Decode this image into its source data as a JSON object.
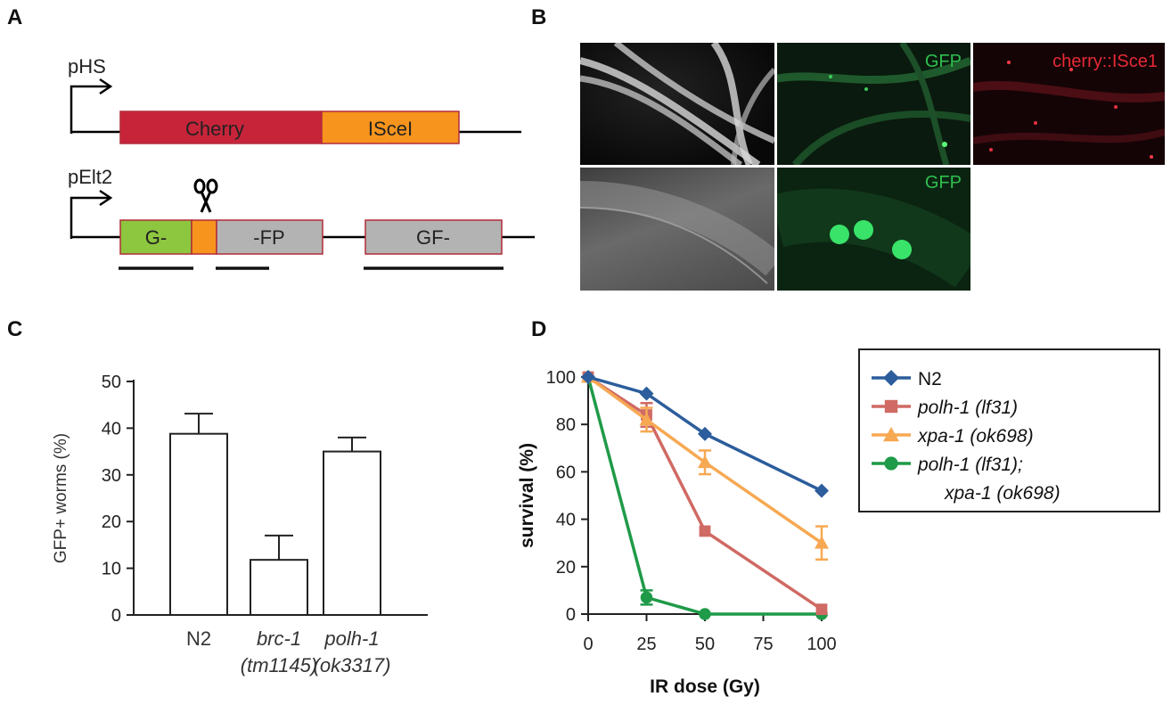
{
  "panels": {
    "a": "A",
    "b": "B",
    "c": "C",
    "d": "D"
  },
  "constructs": {
    "top": {
      "promoter": "pHS",
      "box1": "Cherry",
      "box2": "ISceI"
    },
    "bottom": {
      "promoter": "pElt2",
      "box1": "G-",
      "box3": "-FP",
      "box4": "GF-"
    }
  },
  "micrographs": {
    "gfp_label_top": "GFP",
    "cherry_label": "cherry::ISce1",
    "gfp_label_bottom": "GFP"
  },
  "chart_data": [
    {
      "type": "bar",
      "ylabel": "GFP+ worms (%)",
      "xlabel": "",
      "ylim": [
        0,
        50
      ],
      "yticks": [
        "0",
        "10",
        "20",
        "30",
        "40",
        "50"
      ],
      "categories": [
        {
          "line1": "N2",
          "line2": ""
        },
        {
          "line1": "brc-1",
          "line2": "(tm1145)"
        },
        {
          "line1": "polh-1",
          "line2": "(ok3317)"
        }
      ],
      "values": [
        38.8,
        11.8,
        35.0
      ],
      "errors": [
        4.3,
        5.2,
        3.0
      ]
    },
    {
      "type": "line",
      "xlabel": "IR dose (Gy)",
      "ylabel": "survival (%)",
      "xlim": [
        0,
        100
      ],
      "ylim": [
        0,
        100
      ],
      "xticks": [
        "0",
        "25",
        "50",
        "75",
        "100"
      ],
      "yticks": [
        "0",
        "20",
        "40",
        "60",
        "80",
        "100"
      ],
      "x": [
        0,
        25,
        50,
        100
      ],
      "series": [
        {
          "name": "N2",
          "name2": "",
          "color": "#2c5d9c",
          "marker": "diamond",
          "values": [
            100,
            93,
            76,
            52
          ],
          "errors": [
            0,
            0,
            0,
            0
          ]
        },
        {
          "name": "polh-1 (lf31)",
          "name2": "",
          "color": "#d06a64",
          "marker": "square",
          "values": [
            100,
            84,
            35,
            2
          ],
          "errors": [
            0,
            5,
            0,
            0
          ]
        },
        {
          "name": "xpa-1 (ok698)",
          "name2": "",
          "color": "#f7a852",
          "marker": "triangle",
          "values": [
            100,
            82,
            64,
            30
          ],
          "errors": [
            0,
            5,
            5,
            7
          ]
        },
        {
          "name": "polh-1 (lf31);",
          "name2": "xpa-1 (ok698)",
          "color": "#1f9a48",
          "marker": "circle",
          "values": [
            100,
            7,
            0,
            0
          ],
          "errors": [
            0,
            3,
            0,
            0
          ]
        }
      ]
    }
  ]
}
